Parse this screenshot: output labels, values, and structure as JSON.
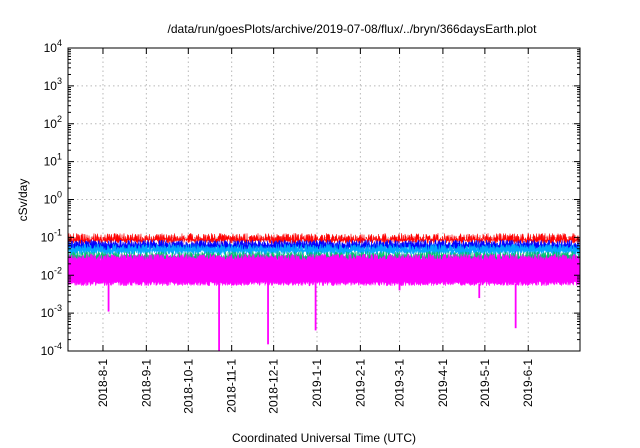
{
  "chart_data": {
    "type": "area",
    "title": "/data/run/goesPlots/archive/2019-07-08/flux/../bryn/366daysEarth.plot",
    "xlabel": "Coordinated Universal Time (UTC)",
    "ylabel": "cSv/day",
    "y_scale": "log",
    "ylim": [
      0.0001,
      10000
    ],
    "xlim": [
      "2018-07-07",
      "2019-07-08"
    ],
    "grid": true,
    "y_ticks": [
      {
        "value": 0.0001,
        "base": "10",
        "exp": "-4"
      },
      {
        "value": 0.001,
        "base": "10",
        "exp": "-3"
      },
      {
        "value": 0.01,
        "base": "10",
        "exp": "-2"
      },
      {
        "value": 0.1,
        "base": "10",
        "exp": "-1"
      },
      {
        "value": 1,
        "base": "10",
        "exp": "0"
      },
      {
        "value": 10,
        "base": "10",
        "exp": "1"
      },
      {
        "value": 100,
        "base": "10",
        "exp": "2"
      },
      {
        "value": 1000,
        "base": "10",
        "exp": "3"
      },
      {
        "value": 10000,
        "base": "10",
        "exp": "4"
      }
    ],
    "x_ticks": [
      "2018-8-1",
      "2018-9-1",
      "2018-10-1",
      "2018-11-1",
      "2018-12-1",
      "2019-1-1",
      "2019-2-1",
      "2019-3-1",
      "2019-4-1",
      "2019-5-1",
      "2019-6-1"
    ],
    "series": [
      {
        "color": "#ff0000",
        "typical_peak": 0.1,
        "typical_level": 0.08
      },
      {
        "color": "#0000ff",
        "typical_peak": 0.07,
        "typical_level": 0.05
      },
      {
        "color": "#00aaff",
        "typical_peak": 0.055,
        "typical_level": 0.04
      },
      {
        "color": "#00c070",
        "typical_peak": 0.035,
        "typical_level": 0.025
      },
      {
        "color": "#ff00ff",
        "typical_peak": 0.03,
        "typical_low": 0.006,
        "dips": [
          {
            "date": "2018-08-05",
            "value": 0.0011
          },
          {
            "date": "2018-10-23",
            "value": 0.0001
          },
          {
            "date": "2018-11-27",
            "value": 0.00015
          },
          {
            "date": "2018-12-31",
            "value": 0.00035
          },
          {
            "date": "2019-03-01",
            "value": 0.004
          },
          {
            "date": "2019-04-27",
            "value": 0.0025
          },
          {
            "date": "2019-05-23",
            "value": 0.0004
          }
        ]
      }
    ]
  }
}
